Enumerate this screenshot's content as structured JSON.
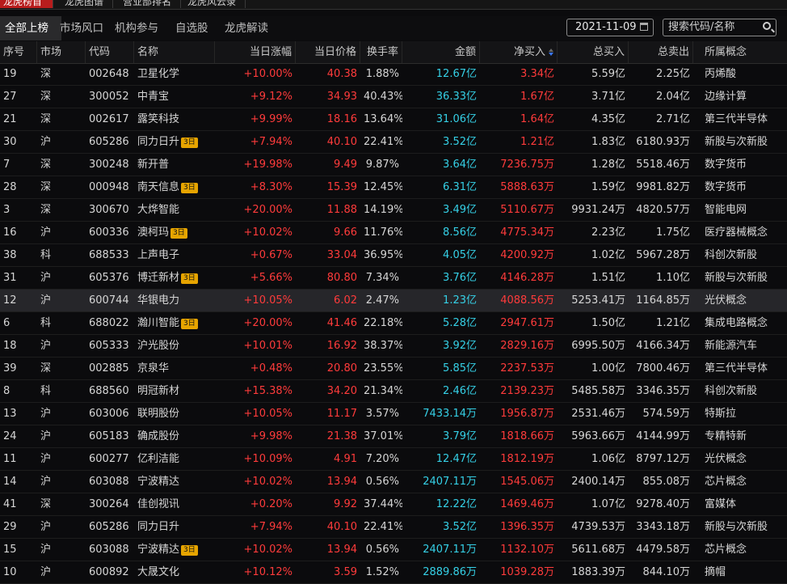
{
  "top_tabs": [
    "龙虎榜首页",
    "龙虎图谱",
    "营业部排名",
    "龙虎风云录"
  ],
  "sub_tabs": [
    "全部上榜",
    "市场风口",
    "机构参与",
    "自选股",
    "龙虎解读"
  ],
  "date": "2021-11-09",
  "search_placeholder": "搜索代码/名称",
  "headers": [
    "序号",
    "市场",
    "代码",
    "名称",
    "当日涨幅",
    "当日价格",
    "换手率",
    "金额",
    "净买入",
    "总买入",
    "总卖出",
    "所属概念"
  ],
  "badge_text": "3日",
  "rows": [
    {
      "no": "19",
      "mkt": "深",
      "code": "002648",
      "name": "卫星化学",
      "badge": "",
      "chg": "+10.00%",
      "price": "40.38",
      "turn": "1.88%",
      "amt": "12.67亿",
      "net": "3.34亿",
      "buy": "5.59亿",
      "sell": "2.25亿",
      "concept": "丙烯酸"
    },
    {
      "no": "27",
      "mkt": "深",
      "code": "300052",
      "name": "中青宝",
      "badge": "",
      "chg": "+9.12%",
      "price": "34.93",
      "turn": "40.43%",
      "amt": "36.33亿",
      "net": "1.67亿",
      "buy": "3.71亿",
      "sell": "2.04亿",
      "concept": "边缘计算"
    },
    {
      "no": "21",
      "mkt": "深",
      "code": "002617",
      "name": "露笑科技",
      "badge": "",
      "chg": "+9.99%",
      "price": "18.16",
      "turn": "13.64%",
      "amt": "31.06亿",
      "net": "1.64亿",
      "buy": "4.35亿",
      "sell": "2.71亿",
      "concept": "第三代半导体"
    },
    {
      "no": "30",
      "mkt": "沪",
      "code": "605286",
      "name": "同力日升",
      "badge": "3日",
      "chg": "+7.94%",
      "price": "40.10",
      "turn": "22.41%",
      "amt": "3.52亿",
      "net": "1.21亿",
      "buy": "1.83亿",
      "sell": "6180.93万",
      "concept": "新股与次新股"
    },
    {
      "no": "7",
      "mkt": "深",
      "code": "300248",
      "name": "新开普",
      "badge": "",
      "chg": "+19.98%",
      "price": "9.49",
      "turn": "9.87%",
      "amt": "3.64亿",
      "net": "7236.75万",
      "buy": "1.28亿",
      "sell": "5518.46万",
      "concept": "数字货币"
    },
    {
      "no": "28",
      "mkt": "深",
      "code": "000948",
      "name": "南天信息",
      "badge": "3日",
      "chg": "+8.30%",
      "price": "15.39",
      "turn": "12.45%",
      "amt": "6.31亿",
      "net": "5888.63万",
      "buy": "1.59亿",
      "sell": "9981.82万",
      "concept": "数字货币"
    },
    {
      "no": "3",
      "mkt": "深",
      "code": "300670",
      "name": "大烨智能",
      "badge": "",
      "chg": "+20.00%",
      "price": "11.88",
      "turn": "14.19%",
      "amt": "3.49亿",
      "net": "5110.67万",
      "buy": "9931.24万",
      "sell": "4820.57万",
      "concept": "智能电网"
    },
    {
      "no": "16",
      "mkt": "沪",
      "code": "600336",
      "name": "澳柯玛",
      "badge": "3日",
      "chg": "+10.02%",
      "price": "9.66",
      "turn": "11.76%",
      "amt": "8.56亿",
      "net": "4775.34万",
      "buy": "2.23亿",
      "sell": "1.75亿",
      "concept": "医疗器械概念"
    },
    {
      "no": "38",
      "mkt": "科",
      "code": "688533",
      "name": "上声电子",
      "badge": "",
      "chg": "+0.67%",
      "price": "33.04",
      "turn": "36.95%",
      "amt": "4.05亿",
      "net": "4200.92万",
      "buy": "1.02亿",
      "sell": "5967.28万",
      "concept": "科创次新股"
    },
    {
      "no": "31",
      "mkt": "沪",
      "code": "605376",
      "name": "博迁新材",
      "badge": "3日",
      "chg": "+5.66%",
      "price": "80.80",
      "turn": "7.34%",
      "amt": "3.76亿",
      "net": "4146.28万",
      "buy": "1.51亿",
      "sell": "1.10亿",
      "concept": "新股与次新股"
    },
    {
      "no": "12",
      "mkt": "沪",
      "code": "600744",
      "name": "华银电力",
      "badge": "",
      "chg": "+10.05%",
      "price": "6.02",
      "turn": "2.47%",
      "amt": "1.23亿",
      "net": "4088.56万",
      "buy": "5253.41万",
      "sell": "1164.85万",
      "concept": "光伏概念"
    },
    {
      "no": "6",
      "mkt": "科",
      "code": "688022",
      "name": "瀚川智能",
      "badge": "3日",
      "chg": "+20.00%",
      "price": "41.46",
      "turn": "22.18%",
      "amt": "5.28亿",
      "net": "2947.61万",
      "buy": "1.50亿",
      "sell": "1.21亿",
      "concept": "集成电路概念"
    },
    {
      "no": "18",
      "mkt": "沪",
      "code": "605333",
      "name": "沪光股份",
      "badge": "",
      "chg": "+10.01%",
      "price": "16.92",
      "turn": "38.37%",
      "amt": "3.92亿",
      "net": "2829.16万",
      "buy": "6995.50万",
      "sell": "4166.34万",
      "concept": "新能源汽车"
    },
    {
      "no": "39",
      "mkt": "深",
      "code": "002885",
      "name": "京泉华",
      "badge": "",
      "chg": "+0.48%",
      "price": "20.80",
      "turn": "23.55%",
      "amt": "5.85亿",
      "net": "2237.53万",
      "buy": "1.00亿",
      "sell": "7800.46万",
      "concept": "第三代半导体"
    },
    {
      "no": "8",
      "mkt": "科",
      "code": "688560",
      "name": "明冠新材",
      "badge": "",
      "chg": "+15.38%",
      "price": "34.20",
      "turn": "21.34%",
      "amt": "2.46亿",
      "net": "2139.23万",
      "buy": "5485.58万",
      "sell": "3346.35万",
      "concept": "科创次新股"
    },
    {
      "no": "13",
      "mkt": "沪",
      "code": "603006",
      "name": "联明股份",
      "badge": "",
      "chg": "+10.05%",
      "price": "11.17",
      "turn": "3.57%",
      "amt": "7433.14万",
      "net": "1956.87万",
      "buy": "2531.46万",
      "sell": "574.59万",
      "concept": "特斯拉"
    },
    {
      "no": "24",
      "mkt": "沪",
      "code": "605183",
      "name": "确成股份",
      "badge": "",
      "chg": "+9.98%",
      "price": "21.38",
      "turn": "37.01%",
      "amt": "3.79亿",
      "net": "1818.66万",
      "buy": "5963.66万",
      "sell": "4144.99万",
      "concept": "专精特新"
    },
    {
      "no": "11",
      "mkt": "沪",
      "code": "600277",
      "name": "亿利洁能",
      "badge": "",
      "chg": "+10.09%",
      "price": "4.91",
      "turn": "7.20%",
      "amt": "12.47亿",
      "net": "1812.19万",
      "buy": "1.06亿",
      "sell": "8797.12万",
      "concept": "光伏概念"
    },
    {
      "no": "14",
      "mkt": "沪",
      "code": "603088",
      "name": "宁波精达",
      "badge": "",
      "chg": "+10.02%",
      "price": "13.94",
      "turn": "0.56%",
      "amt": "2407.11万",
      "net": "1545.06万",
      "buy": "2400.14万",
      "sell": "855.08万",
      "concept": "芯片概念"
    },
    {
      "no": "41",
      "mkt": "深",
      "code": "300264",
      "name": "佳创视讯",
      "badge": "",
      "chg": "+0.20%",
      "price": "9.92",
      "turn": "37.44%",
      "amt": "12.22亿",
      "net": "1469.46万",
      "buy": "1.07亿",
      "sell": "9278.40万",
      "concept": "富媒体"
    },
    {
      "no": "29",
      "mkt": "沪",
      "code": "605286",
      "name": "同力日升",
      "badge": "",
      "chg": "+7.94%",
      "price": "40.10",
      "turn": "22.41%",
      "amt": "3.52亿",
      "net": "1396.35万",
      "buy": "4739.53万",
      "sell": "3343.18万",
      "concept": "新股与次新股"
    },
    {
      "no": "15",
      "mkt": "沪",
      "code": "603088",
      "name": "宁波精达",
      "badge": "3日",
      "chg": "+10.02%",
      "price": "13.94",
      "turn": "0.56%",
      "amt": "2407.11万",
      "net": "1132.10万",
      "buy": "5611.68万",
      "sell": "4479.58万",
      "concept": "芯片概念"
    },
    {
      "no": "10",
      "mkt": "沪",
      "code": "600892",
      "name": "大晟文化",
      "badge": "",
      "chg": "+10.12%",
      "price": "3.59",
      "turn": "1.52%",
      "amt": "2889.86万",
      "net": "1039.28万",
      "buy": "1883.39万",
      "sell": "844.10万",
      "concept": "摘帽"
    }
  ]
}
